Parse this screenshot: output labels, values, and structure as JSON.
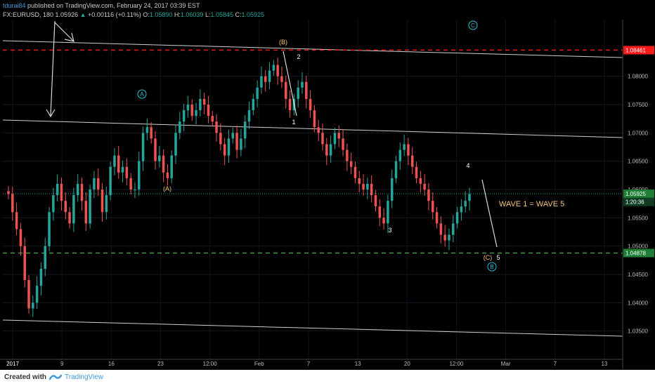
{
  "header": {
    "user": "tdurai84",
    "published": "published on TradingView.com, February 24, 2017 03:39 EST",
    "symbol": "FX:EURUSD, 180",
    "last": "1.05926",
    "change": "+0.00116 (+0.11%)",
    "o_label": "O:",
    "o_value": "1.05890",
    "h_label": "H:",
    "h_value": "1.06039",
    "l_label": "L:",
    "l_value": "1.05845",
    "c_label": "C:",
    "c_value": "1.05925"
  },
  "footer": {
    "created": "Created with",
    "brand": "TradingView"
  },
  "colors": {
    "up": "#26a69a",
    "down": "#ef5350",
    "accent": "#3e9bd8",
    "price_tag": "#1e7e34",
    "resistance": "#ff1a1a",
    "support": "#4caf50",
    "wave_orange": "#f5c27a",
    "wave_circle": "#26c6da"
  },
  "chart_data": {
    "type": "candlestick",
    "symbol": "FX:EURUSD",
    "interval": "180",
    "ylim": [
      1.03,
      1.09
    ],
    "y_ticks": [
      1.035,
      1.04,
      1.045,
      1.05,
      1.055,
      1.06,
      1.065,
      1.07,
      1.075,
      1.08
    ],
    "y_tick_labels": [
      "1.03500",
      "1.04000",
      "1.04500",
      "1.05000",
      "1.05500",
      "1.06000",
      "1.06500",
      "1.07000",
      "1.07500",
      "1.08000"
    ],
    "x_tick_labels": [
      "2017",
      "9",
      "16",
      "23",
      "12:00",
      "Feb",
      "7",
      "13",
      "20",
      "12:00",
      "Mar",
      "7",
      "13"
    ],
    "price_tags": [
      {
        "label": "1.08461",
        "value": 1.08461
      },
      {
        "label": "1.05925",
        "value": 1.05925
      },
      {
        "label": "1:20:36",
        "value": 1.0578
      },
      {
        "label": "1.04878",
        "value": 1.04878
      }
    ],
    "horizontal_levels": [
      {
        "name": "resistance",
        "value": 1.08461,
        "style": "dashed"
      },
      {
        "name": "support",
        "value": 1.04878,
        "style": "dashed"
      },
      {
        "name": "last-price",
        "value": 1.05925,
        "style": "dotted"
      }
    ],
    "wave_labels": [
      "(B)",
      "2",
      "1",
      "A",
      "(A)",
      "3",
      "4",
      "C",
      "(C)",
      "5",
      "B"
    ],
    "annotation": "WAVE 1 = WAVE 5",
    "closes": [
      1.0592,
      1.056,
      1.053,
      1.05,
      1.044,
      1.039,
      1.04,
      1.043,
      1.046,
      1.05,
      1.056,
      1.059,
      1.061,
      1.058,
      1.056,
      1.054,
      1.059,
      1.061,
      1.058,
      1.054,
      1.06,
      1.062,
      1.06,
      1.056,
      1.059,
      1.064,
      1.066,
      1.063,
      1.064,
      1.062,
      1.06,
      1.06,
      1.065,
      1.07,
      1.071,
      1.069,
      1.065,
      1.066,
      1.063,
      1.062,
      1.066,
      1.07,
      1.072,
      1.074,
      1.075,
      1.073,
      1.074,
      1.076,
      1.075,
      1.073,
      1.072,
      1.07,
      1.068,
      1.066,
      1.069,
      1.07,
      1.067,
      1.069,
      1.072,
      1.074,
      1.076,
      1.078,
      1.08,
      1.079,
      1.081,
      1.082,
      1.08,
      1.079,
      1.076,
      1.074,
      1.076,
      1.078,
      1.079,
      1.076,
      1.074,
      1.071,
      1.07,
      1.068,
      1.066,
      1.068,
      1.07,
      1.069,
      1.067,
      1.065,
      1.064,
      1.062,
      1.061,
      1.06,
      1.061,
      1.059,
      1.057,
      1.055,
      1.054,
      1.058,
      1.062,
      1.065,
      1.067,
      1.068,
      1.066,
      1.064,
      1.062,
      1.061,
      1.06,
      1.058,
      1.056,
      1.054,
      1.052,
      1.051,
      1.052,
      1.054,
      1.056,
      1.057,
      1.058,
      1.0592
    ]
  }
}
